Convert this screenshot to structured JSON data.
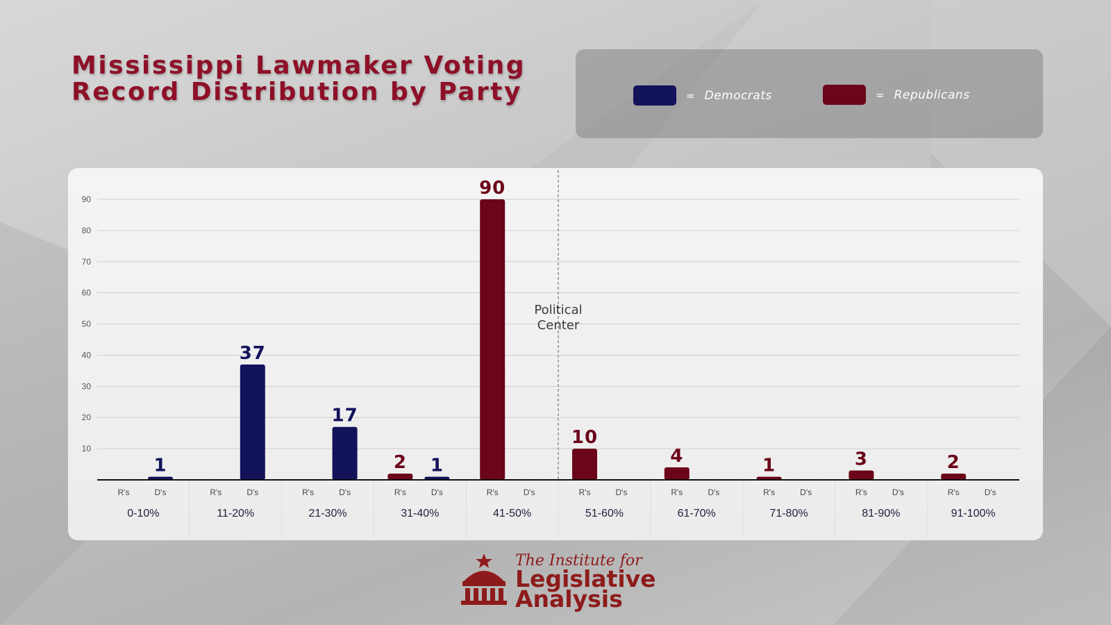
{
  "title": "Mississippi Lawmaker Voting Record Distribution by Party",
  "legend": {
    "democrats_label": "Democrats",
    "republicans_label": "Republicans",
    "equals": "="
  },
  "colors": {
    "democrats": "#12135a",
    "republicans": "#6b0519",
    "title": "#8e1028"
  },
  "center_annotation": "Political Center",
  "logo": {
    "line1": "The Institute for",
    "line2": "Legislative",
    "line3": "Analysis"
  },
  "chart_data": {
    "type": "bar",
    "title": "Mississippi Lawmaker Voting Record Distribution by Party",
    "categories": [
      "0-10%",
      "11-20%",
      "21-30%",
      "31-40%",
      "41-50%",
      "51-60%",
      "61-70%",
      "71-80%",
      "81-90%",
      "91-100%"
    ],
    "subcategory_labels": [
      "R's",
      "D's"
    ],
    "series": [
      {
        "name": "Republicans",
        "values": [
          0,
          0,
          0,
          2,
          90,
          10,
          4,
          1,
          3,
          2
        ]
      },
      {
        "name": "Democrats",
        "values": [
          1,
          37,
          17,
          1,
          0,
          0,
          0,
          0,
          0,
          0
        ]
      }
    ],
    "yticks": [
      10,
      20,
      30,
      40,
      50,
      60,
      70,
      80,
      90
    ],
    "ylim": [
      0,
      90
    ],
    "grid": true,
    "legend_position": "top-right",
    "annotation": {
      "text": "Political Center",
      "position": "between 41-50% and 51-60%"
    }
  }
}
